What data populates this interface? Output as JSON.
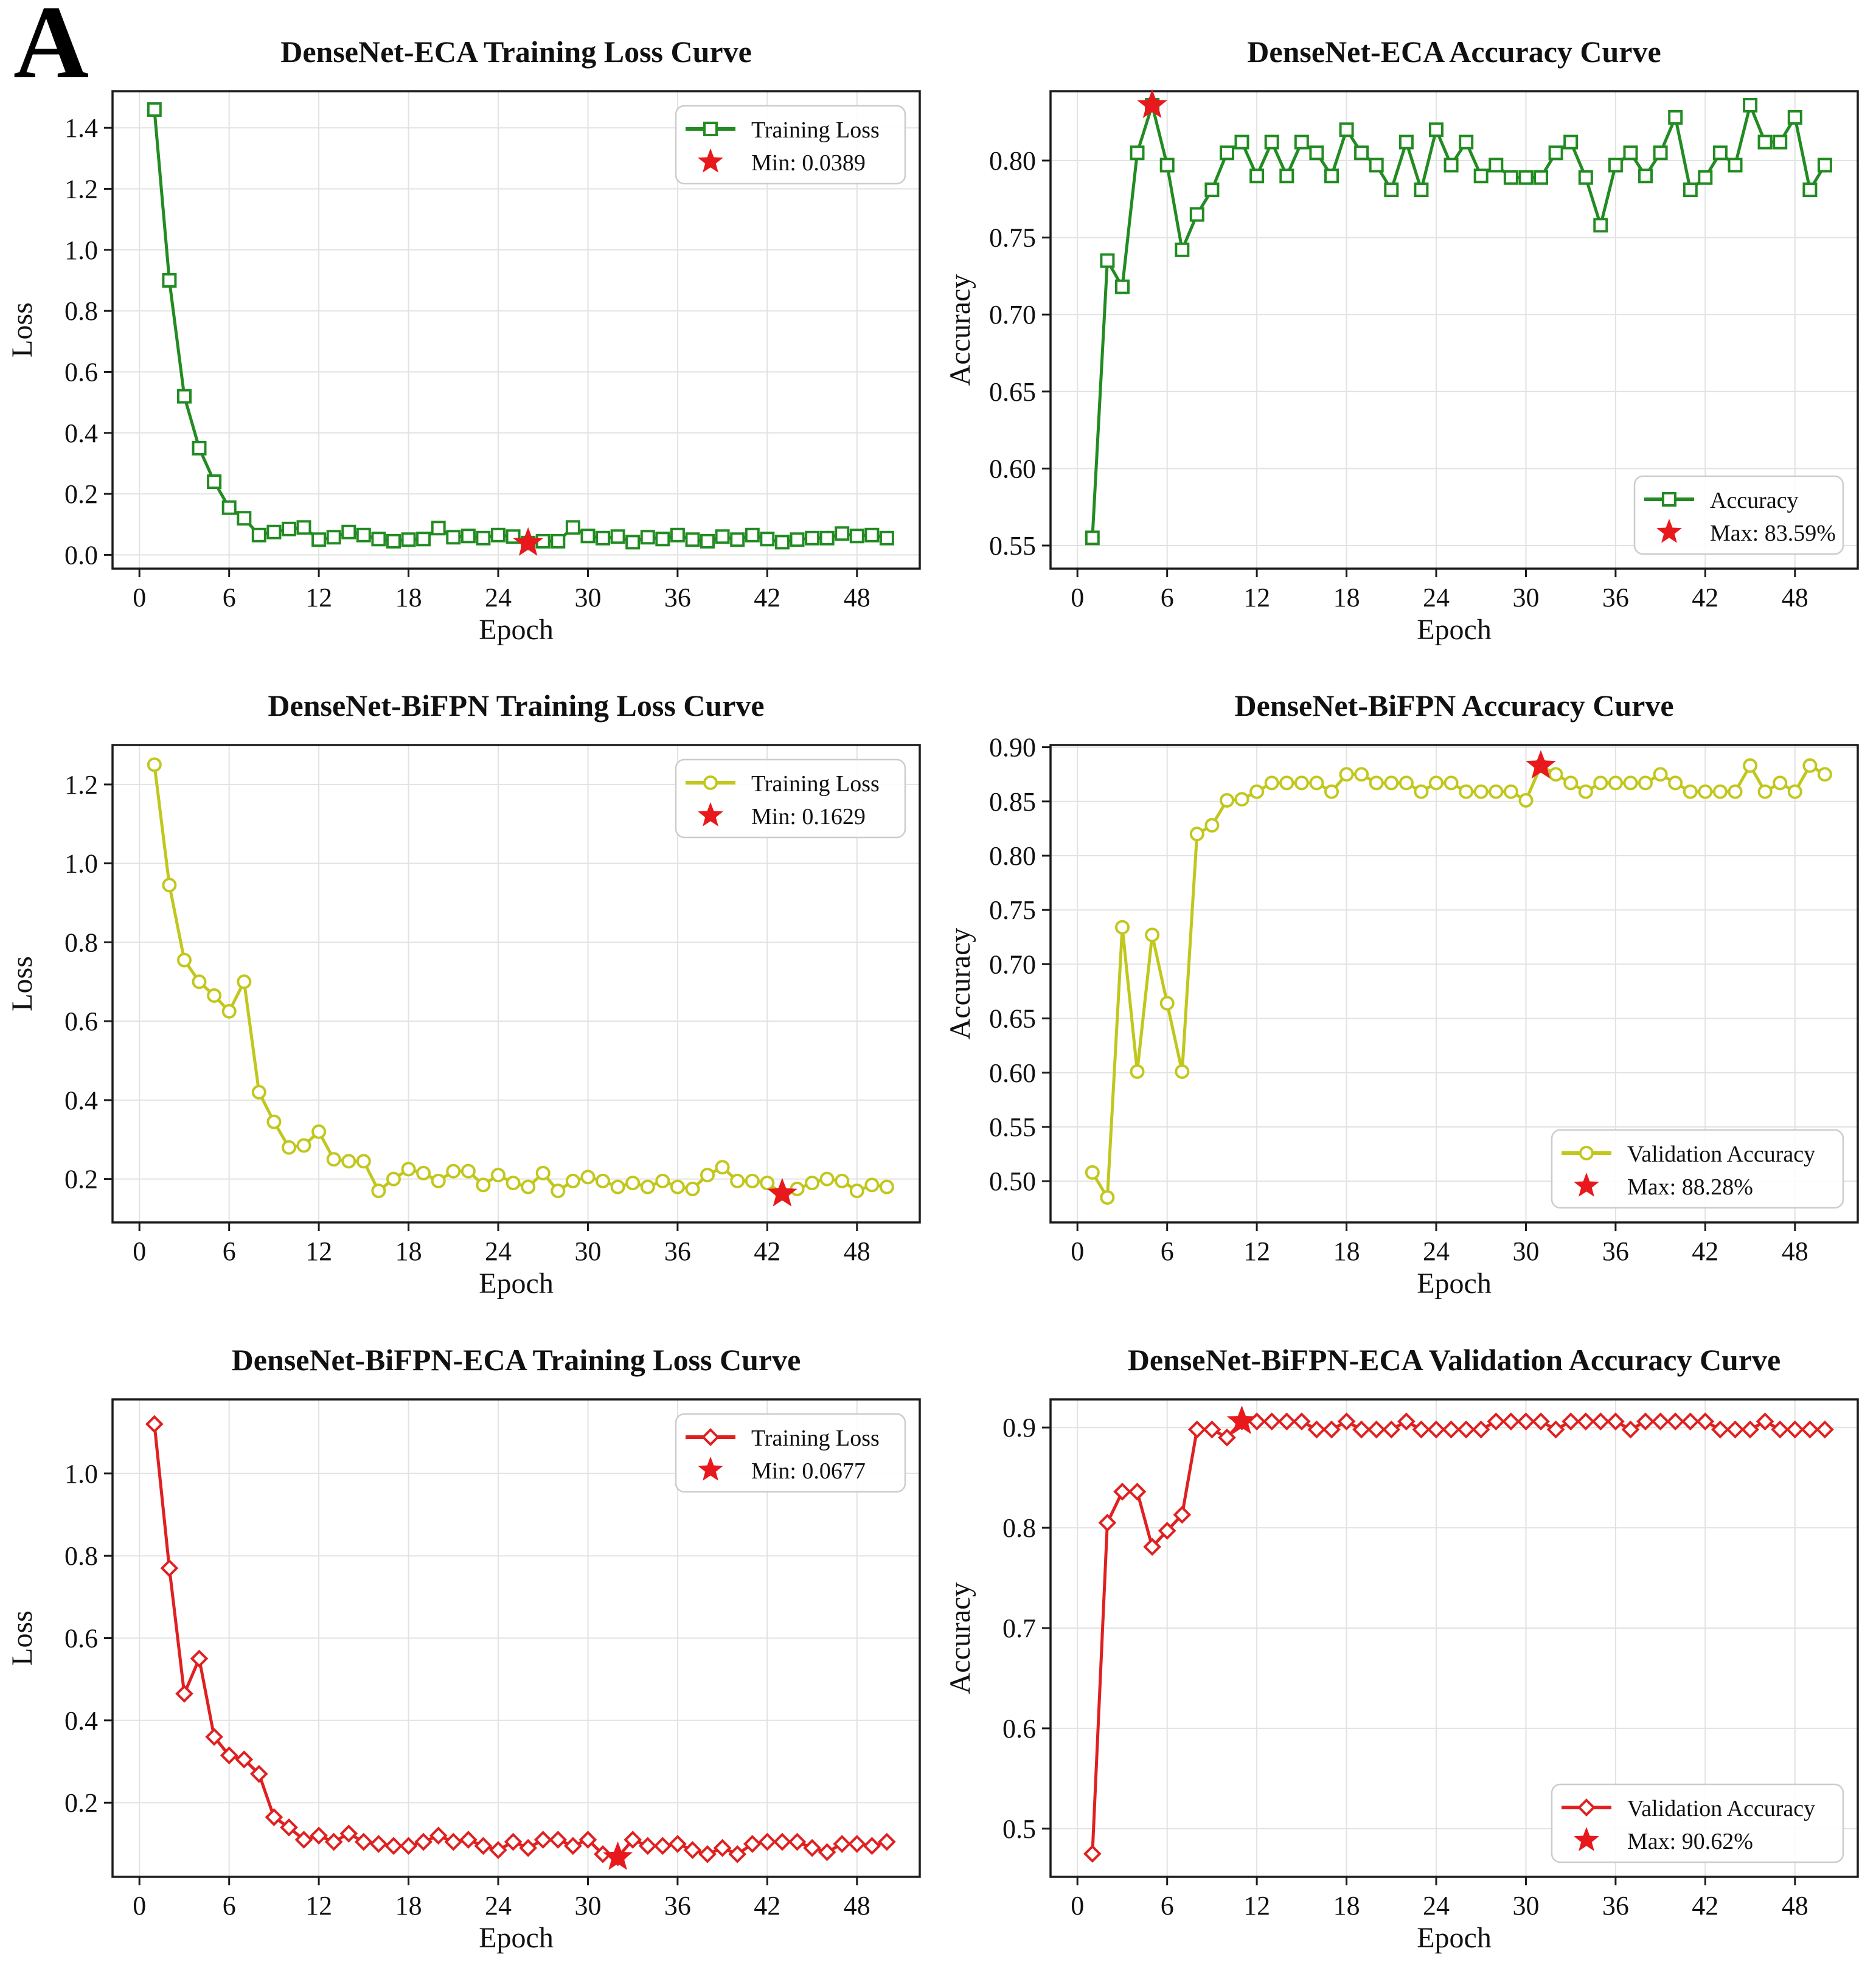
{
  "panel_label": "A",
  "chart_data": [
    {
      "type": "line",
      "title": "DenseNet-ECA Training Loss Curve",
      "xlabel": "Epoch",
      "ylabel": "Loss",
      "series_label": "Training Loss",
      "marker": "square",
      "color": "#228B22",
      "star_color": "#e8191d",
      "legend_position": "top-right",
      "legend_items": [
        {
          "type": "line",
          "label": "Training Loss"
        },
        {
          "type": "star",
          "label": "Min: 0.0389"
        }
      ],
      "x_start": 1,
      "x_step": 1,
      "values": [
        1.46,
        0.9,
        0.52,
        0.35,
        0.24,
        0.155,
        0.12,
        0.065,
        0.075,
        0.085,
        0.09,
        0.05,
        0.058,
        0.075,
        0.065,
        0.052,
        0.045,
        0.05,
        0.052,
        0.088,
        0.058,
        0.062,
        0.055,
        0.065,
        0.06,
        0.0389,
        0.045,
        0.045,
        0.09,
        0.062,
        0.055,
        0.06,
        0.042,
        0.058,
        0.052,
        0.065,
        0.05,
        0.045,
        0.06,
        0.05,
        0.065,
        0.052,
        0.042,
        0.05,
        0.055,
        0.055,
        0.07,
        0.062,
        0.065,
        0.055
      ],
      "star": {
        "x": 26,
        "y": 0.0389,
        "label": "Min: 0.0389"
      },
      "xlim": [
        -1.8,
        52.2
      ],
      "ylim": [
        -0.045,
        1.52
      ],
      "xticks": [
        0,
        6,
        12,
        18,
        24,
        30,
        36,
        42,
        48
      ],
      "ytick_vals": [
        0.0,
        0.2,
        0.4,
        0.6,
        0.8,
        1.0,
        1.2,
        1.4
      ],
      "ytick_labels": [
        "0.0",
        "0.2",
        "0.4",
        "0.6",
        "0.8",
        "1.0",
        "1.2",
        "1.4"
      ],
      "grid": true
    },
    {
      "type": "line",
      "title": "DenseNet-ECA Accuracy Curve",
      "xlabel": "Epoch",
      "ylabel": "Accuracy",
      "series_label": "Accuracy",
      "marker": "square",
      "color": "#228B22",
      "star_color": "#e8191d",
      "legend_position": "bottom-right",
      "legend_items": [
        {
          "type": "line",
          "label": "Accuracy"
        },
        {
          "type": "star",
          "label": "Max: 83.59%"
        }
      ],
      "x_start": 1,
      "x_step": 1,
      "values": [
        0.555,
        0.735,
        0.718,
        0.805,
        0.8359,
        0.797,
        0.742,
        0.765,
        0.781,
        0.805,
        0.812,
        0.79,
        0.812,
        0.79,
        0.812,
        0.805,
        0.79,
        0.82,
        0.805,
        0.797,
        0.781,
        0.812,
        0.781,
        0.82,
        0.797,
        0.812,
        0.79,
        0.797,
        0.789,
        0.789,
        0.789,
        0.805,
        0.812,
        0.789,
        0.758,
        0.797,
        0.805,
        0.79,
        0.805,
        0.828,
        0.781,
        0.789,
        0.805,
        0.797,
        0.8359,
        0.812,
        0.812,
        0.828,
        0.781,
        0.797
      ],
      "star": {
        "x": 5,
        "y": 0.8359,
        "label": "Max: 83.59%"
      },
      "xlim": [
        -1.8,
        52.2
      ],
      "ylim": [
        0.535,
        0.845
      ],
      "xticks": [
        0,
        6,
        12,
        18,
        24,
        30,
        36,
        42,
        48
      ],
      "ytick_vals": [
        0.55,
        0.6,
        0.65,
        0.7,
        0.75,
        0.8
      ],
      "ytick_labels": [
        "0.55",
        "0.60",
        "0.65",
        "0.70",
        "0.75",
        "0.80"
      ],
      "grid": true
    },
    {
      "type": "line",
      "title": "DenseNet-BiFPN Training Loss Curve",
      "xlabel": "Epoch",
      "ylabel": "Loss",
      "series_label": "Training Loss",
      "marker": "circle",
      "color": "#c1c71d",
      "star_color": "#e8191d",
      "legend_position": "top-right",
      "legend_items": [
        {
          "type": "line",
          "label": "Training Loss"
        },
        {
          "type": "star",
          "label": "Min: 0.1629"
        }
      ],
      "x_start": 1,
      "x_step": 1,
      "values": [
        1.25,
        0.945,
        0.755,
        0.7,
        0.665,
        0.625,
        0.7,
        0.42,
        0.345,
        0.28,
        0.285,
        0.32,
        0.25,
        0.245,
        0.245,
        0.17,
        0.2,
        0.225,
        0.215,
        0.195,
        0.22,
        0.22,
        0.185,
        0.21,
        0.19,
        0.18,
        0.215,
        0.17,
        0.195,
        0.205,
        0.195,
        0.18,
        0.19,
        0.18,
        0.195,
        0.18,
        0.175,
        0.21,
        0.23,
        0.195,
        0.195,
        0.19,
        0.1629,
        0.175,
        0.19,
        0.2,
        0.195,
        0.17,
        0.185,
        0.18
      ],
      "star": {
        "x": 43,
        "y": 0.1629,
        "label": "Min: 0.1629"
      },
      "xlim": [
        -1.8,
        52.2
      ],
      "ylim": [
        0.09,
        1.3
      ],
      "xticks": [
        0,
        6,
        12,
        18,
        24,
        30,
        36,
        42,
        48
      ],
      "ytick_vals": [
        0.2,
        0.4,
        0.6,
        0.8,
        1.0,
        1.2
      ],
      "ytick_labels": [
        "0.2",
        "0.4",
        "0.6",
        "0.8",
        "1.0",
        "1.2"
      ],
      "grid": true
    },
    {
      "type": "line",
      "title": "DenseNet-BiFPN Accuracy Curve",
      "xlabel": "Epoch",
      "ylabel": "Accuracy",
      "series_label": "Validation Accuracy",
      "marker": "circle",
      "color": "#c1c71d",
      "star_color": "#e8191d",
      "legend_position": "bottom-right",
      "legend_items": [
        {
          "type": "line",
          "label": "Validation Accuracy"
        },
        {
          "type": "star",
          "label": "Max: 88.28%"
        }
      ],
      "x_start": 1,
      "x_step": 1,
      "values": [
        0.508,
        0.485,
        0.734,
        0.601,
        0.727,
        0.664,
        0.601,
        0.82,
        0.828,
        0.851,
        0.852,
        0.859,
        0.867,
        0.867,
        0.867,
        0.867,
        0.859,
        0.875,
        0.875,
        0.867,
        0.867,
        0.867,
        0.859,
        0.867,
        0.867,
        0.859,
        0.859,
        0.859,
        0.859,
        0.851,
        0.8828,
        0.875,
        0.867,
        0.859,
        0.867,
        0.867,
        0.867,
        0.867,
        0.875,
        0.867,
        0.859,
        0.859,
        0.859,
        0.859,
        0.883,
        0.859,
        0.867,
        0.859,
        0.883,
        0.875
      ],
      "star": {
        "x": 31,
        "y": 0.8828,
        "label": "Max: 88.28%"
      },
      "xlim": [
        -1.8,
        52.2
      ],
      "ylim": [
        0.462,
        0.902
      ],
      "xticks": [
        0,
        6,
        12,
        18,
        24,
        30,
        36,
        42,
        48
      ],
      "ytick_vals": [
        0.5,
        0.55,
        0.6,
        0.65,
        0.7,
        0.75,
        0.8,
        0.85,
        0.9
      ],
      "ytick_labels": [
        "0.50",
        "0.55",
        "0.60",
        "0.65",
        "0.70",
        "0.75",
        "0.80",
        "0.85",
        "0.90"
      ],
      "grid": true
    },
    {
      "type": "line",
      "title": "DenseNet-BiFPN-ECA Training Loss Curve",
      "xlabel": "Epoch",
      "ylabel": "Loss",
      "series_label": "Training Loss",
      "marker": "diamond",
      "color": "#e02020",
      "star_color": "#e8191d",
      "legend_position": "top-right",
      "legend_items": [
        {
          "type": "line",
          "label": "Training Loss"
        },
        {
          "type": "star",
          "label": "Min: 0.0677"
        }
      ],
      "x_start": 1,
      "x_step": 1,
      "values": [
        1.12,
        0.77,
        0.465,
        0.55,
        0.36,
        0.315,
        0.305,
        0.27,
        0.165,
        0.14,
        0.11,
        0.12,
        0.105,
        0.125,
        0.105,
        0.1,
        0.095,
        0.095,
        0.105,
        0.12,
        0.105,
        0.11,
        0.095,
        0.085,
        0.105,
        0.09,
        0.11,
        0.11,
        0.095,
        0.11,
        0.075,
        0.0677,
        0.11,
        0.095,
        0.095,
        0.1,
        0.085,
        0.075,
        0.09,
        0.075,
        0.1,
        0.105,
        0.105,
        0.105,
        0.09,
        0.08,
        0.1,
        0.1,
        0.095,
        0.105
      ],
      "star": {
        "x": 32,
        "y": 0.0677,
        "label": "Min: 0.0677"
      },
      "xlim": [
        -1.8,
        52.2
      ],
      "ylim": [
        0.02,
        1.18
      ],
      "xticks": [
        0,
        6,
        12,
        18,
        24,
        30,
        36,
        42,
        48
      ],
      "ytick_vals": [
        0.2,
        0.4,
        0.6,
        0.8,
        1.0
      ],
      "ytick_labels": [
        "0.2",
        "0.4",
        "0.6",
        "0.8",
        "1.0"
      ],
      "grid": true
    },
    {
      "type": "line",
      "title": "DenseNet-BiFPN-ECA Validation Accuracy Curve",
      "xlabel": "Epoch",
      "ylabel": "Accuracy",
      "series_label": "Validation Accuracy",
      "marker": "diamond",
      "color": "#e02020",
      "star_color": "#e8191d",
      "legend_position": "bottom-right",
      "legend_items": [
        {
          "type": "line",
          "label": "Validation Accuracy"
        },
        {
          "type": "star",
          "label": "Max: 90.62%"
        }
      ],
      "x_start": 1,
      "x_step": 1,
      "values": [
        0.475,
        0.805,
        0.836,
        0.836,
        0.781,
        0.797,
        0.813,
        0.898,
        0.898,
        0.89,
        0.9062,
        0.906,
        0.906,
        0.906,
        0.906,
        0.898,
        0.898,
        0.906,
        0.898,
        0.898,
        0.898,
        0.906,
        0.898,
        0.898,
        0.898,
        0.898,
        0.898,
        0.906,
        0.906,
        0.906,
        0.906,
        0.898,
        0.906,
        0.906,
        0.906,
        0.906,
        0.898,
        0.906,
        0.906,
        0.906,
        0.906,
        0.906,
        0.898,
        0.898,
        0.898,
        0.906,
        0.898,
        0.898,
        0.898,
        0.898
      ],
      "star": {
        "x": 11,
        "y": 0.9062,
        "label": "Max: 90.62%"
      },
      "xlim": [
        -1.8,
        52.2
      ],
      "ylim": [
        0.452,
        0.928
      ],
      "xticks": [
        0,
        6,
        12,
        18,
        24,
        30,
        36,
        42,
        48
      ],
      "ytick_vals": [
        0.5,
        0.6,
        0.7,
        0.8,
        0.9
      ],
      "ytick_labels": [
        "0.5",
        "0.6",
        "0.7",
        "0.8",
        "0.9"
      ],
      "grid": true
    }
  ]
}
